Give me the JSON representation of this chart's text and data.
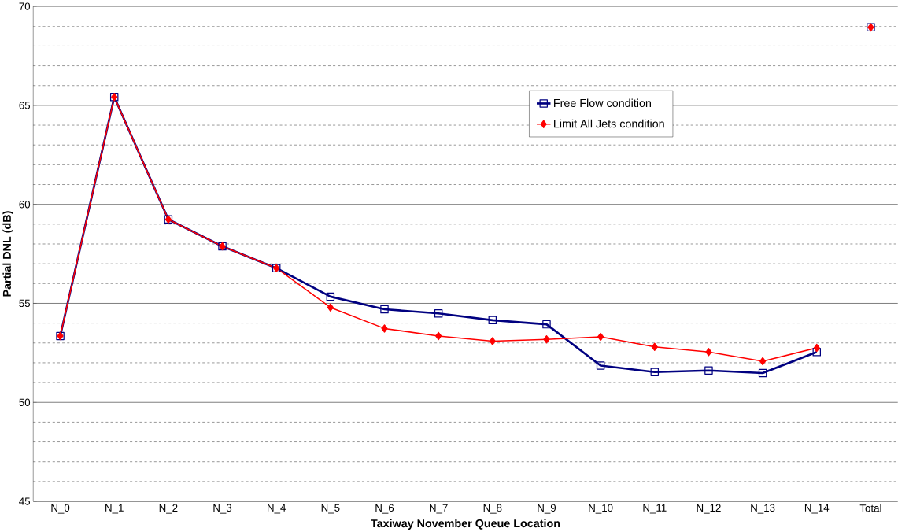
{
  "chart_data": {
    "type": "line",
    "xlabel": "Taxiway November Queue Location",
    "ylabel": "Partial DNL (dB)",
    "categories": [
      "N_0",
      "N_1",
      "N_2",
      "N_3",
      "N_4",
      "N_5",
      "N_6",
      "N_7",
      "N_8",
      "N_9",
      "N_10",
      "N_11",
      "N_12",
      "N_13",
      "N_14",
      "Total"
    ],
    "series": [
      {
        "name": "Free Flow condition",
        "color": "#000080",
        "marker": "square",
        "values": [
          53.35,
          65.42,
          59.24,
          57.88,
          56.78,
          55.34,
          54.7,
          54.49,
          54.15,
          53.94,
          51.86,
          51.53,
          51.61,
          51.48,
          52.54,
          null
        ]
      },
      {
        "name": "Limit All Jets condition",
        "color": "#ff0000",
        "marker": "diamond",
        "values": [
          53.35,
          65.42,
          59.24,
          57.88,
          56.78,
          54.79,
          53.73,
          53.35,
          53.09,
          53.18,
          53.31,
          52.8,
          52.54,
          52.08,
          52.75,
          null
        ]
      },
      {
        "type": "scatter",
        "color": "#000080",
        "marker": "square",
        "values": [
          null,
          null,
          null,
          null,
          null,
          null,
          null,
          null,
          null,
          null,
          null,
          null,
          null,
          null,
          null,
          68.94
        ]
      },
      {
        "type": "scatter",
        "color": "#ff0000",
        "marker": "diamond",
        "values": [
          null,
          null,
          null,
          null,
          null,
          null,
          null,
          null,
          null,
          null,
          null,
          null,
          null,
          null,
          null,
          68.94
        ]
      }
    ],
    "ylim": [
      45,
      70
    ],
    "yticks": [
      45,
      50,
      55,
      60,
      65,
      70
    ],
    "grid": "y",
    "legend": "top right"
  }
}
